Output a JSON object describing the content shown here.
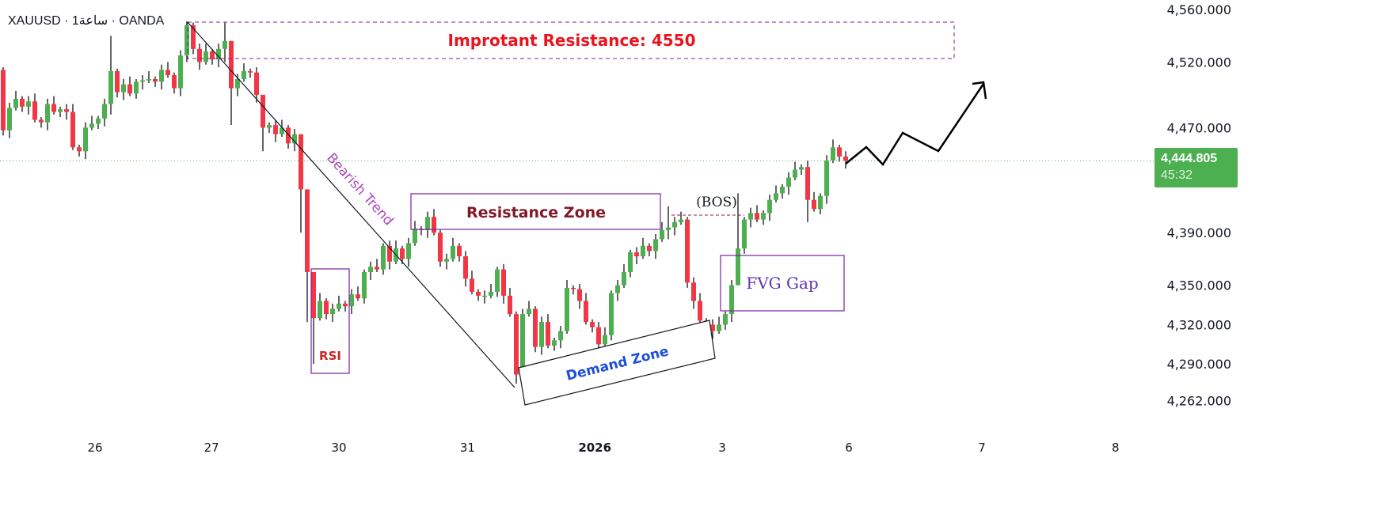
{
  "header": {
    "symbol_line": "XAUUSD · 1ساعة · OANDA"
  },
  "last_price": {
    "value": "4,444.805",
    "countdown": "45:32",
    "color": "#4caf50"
  },
  "colors": {
    "up": "#4caf50",
    "down": "#f23645",
    "annotation_purple": "#7b1fa2"
  },
  "chart_data": {
    "type": "candlestick",
    "title": "XAUUSD · 1ساعة · OANDA",
    "ylim": [
      4250,
      4570
    ],
    "y_ticks": [
      4560,
      4520,
      4470,
      4390,
      4350,
      4320,
      4290,
      4262
    ],
    "y_tick_labels": [
      "4,560.000",
      "4,520.000",
      "4,470.000",
      "4,390.000",
      "4,350.000",
      "4,320.000",
      "4,290.000",
      "4,262.000"
    ],
    "x_tick_labels": [
      {
        "label": "26",
        "candle": 14.5
      },
      {
        "label": "27",
        "candle": 32.9
      },
      {
        "label": "30",
        "candle": 53
      },
      {
        "label": "31",
        "candle": 73.3
      },
      {
        "label": "2026",
        "candle": 93.4,
        "bold": true
      },
      {
        "label": "3",
        "candle": 113.5
      },
      {
        "label": "6",
        "candle": 133.5
      },
      {
        "label": "7",
        "candle": 154.5
      },
      {
        "label": "8",
        "candle": 175.6
      }
    ],
    "first_open": 4514,
    "closes": [
      4468,
      4485,
      4492,
      4486,
      4490,
      4476,
      4474,
      4488,
      4482,
      4484,
      4482,
      4455,
      4452,
      4470,
      4473,
      4477,
      4488,
      4513,
      4497,
      4503,
      4496,
      4505,
      4506,
      4507,
      4505,
      4514,
      4510,
      4500,
      4525,
      4548,
      4530,
      4520,
      4528,
      4522,
      4530,
      4536,
      4500,
      4507,
      4513,
      4512,
      4495,
      4470,
      4472,
      4465,
      4470,
      4458,
      4465,
      4423,
      4360,
      4325,
      4338,
      4328,
      4332,
      4336,
      4334,
      4343,
      4340,
      4360,
      4364,
      4362,
      4380,
      4368,
      4378,
      4370,
      4382,
      4393,
      4392,
      4402,
      4390,
      4368,
      4370,
      4380,
      4372,
      4355,
      4345,
      4342,
      4342,
      4345,
      4362,
      4342,
      4328,
      4282,
      4328,
      4332,
      4303,
      4322,
      4304,
      4308,
      4315,
      4348,
      4347,
      4338,
      4322,
      4318,
      4305,
      4312,
      4344,
      4350,
      4360,
      4375,
      4372,
      4380,
      4376,
      4385,
      4392,
      4394,
      4398,
      4400,
      4352,
      4338,
      4323,
      4320,
      4315,
      4320,
      4328,
      4350,
      4378,
      4400,
      4405,
      4400,
      4405,
      4415,
      4420,
      4425,
      4432,
      4438,
      4440,
      4415,
      4408,
      4418,
      4445,
      4455,
      4448,
      4444.805
    ],
    "wick_extremes": {
      "17": [
        4540,
        4480
      ],
      "29": [
        4551,
        4520
      ],
      "35": [
        4550,
        4520
      ],
      "36": [
        4536,
        4472
      ],
      "41": [
        4490,
        4452
      ],
      "47": [
        4458,
        4390
      ],
      "48": [
        4423,
        4322
      ],
      "49": [
        4360,
        4290
      ],
      "81": [
        4330,
        4275
      ],
      "105": [
        4410,
        4385
      ],
      "116": [
        4420,
        4350
      ],
      "127": [
        4445,
        4398
      ]
    },
    "current_price": 4444.805
  },
  "annotations": {
    "resistance_label": "Improtant Resistance: 4550",
    "bearish_trend": "Bearish Trend",
    "resistance_zone": "Resistance Zone",
    "rsi": "RSI",
    "demand_zone": "Demand Zone",
    "bos": "(BOS)",
    "fvg": "FVG Gap"
  }
}
